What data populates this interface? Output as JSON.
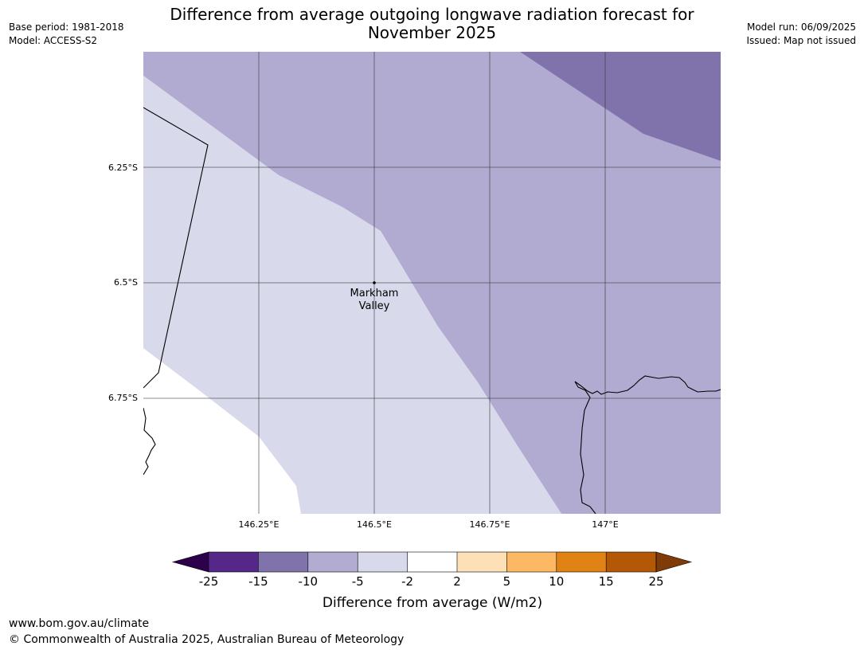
{
  "header": {
    "title_line1": "Difference from average outgoing longwave radiation forecast for",
    "title_line2": "November 2025",
    "base_period": "Base period: 1981-2018",
    "model": "Model: ACCESS-S2",
    "model_run": "Model run: 06/09/2025",
    "issued": "Issued: Map not issued"
  },
  "map": {
    "longitude_labels": [
      "146.25°E",
      "146.5°E",
      "146.75°E",
      "147°E"
    ],
    "latitude_labels": [
      "6.25°S",
      "6.5°S",
      "6.75°S"
    ],
    "place_name_line1": "Markham",
    "place_name_line2": "Valley",
    "place_latitude": "6.5°S",
    "place_longitude": "146.5°E",
    "regions": [
      {
        "category": "-10 to -5",
        "color": "#b1abd2"
      },
      {
        "category": "-15 to -10",
        "color": "#8073ac"
      },
      {
        "category": "-5 to -2",
        "color": "#d8d9eb"
      },
      {
        "category": "-2 to 2",
        "color": "#ffffff"
      }
    ]
  },
  "colorbar": {
    "tick_labels": [
      "-25",
      "-15",
      "-10",
      "-5",
      "-2",
      "2",
      "5",
      "10",
      "15",
      "25"
    ],
    "label": "Difference from average (W/m2)",
    "low_extend_color": "#2d004b",
    "high_extend_color": "#7f3b08",
    "bins": [
      {
        "from": "-25",
        "to": "-15",
        "color": "#542788"
      },
      {
        "from": "-15",
        "to": "-10",
        "color": "#8073ac"
      },
      {
        "from": "-10",
        "to": "-5",
        "color": "#b2abd2"
      },
      {
        "from": "-5",
        "to": "-2",
        "color": "#d8daeb"
      },
      {
        "from": "-2",
        "to": "2",
        "color": "#ffffff"
      },
      {
        "from": "2",
        "to": "5",
        "color": "#fee0b6"
      },
      {
        "from": "5",
        "to": "10",
        "color": "#fdb863"
      },
      {
        "from": "10",
        "to": "15",
        "color": "#e08214"
      },
      {
        "from": "15",
        "to": "25",
        "color": "#b35806"
      }
    ]
  },
  "footer": {
    "url": "www.bom.gov.au/climate",
    "copyright": "© Commonwealth of Australia 2025, Australian Bureau of Meteorology"
  }
}
